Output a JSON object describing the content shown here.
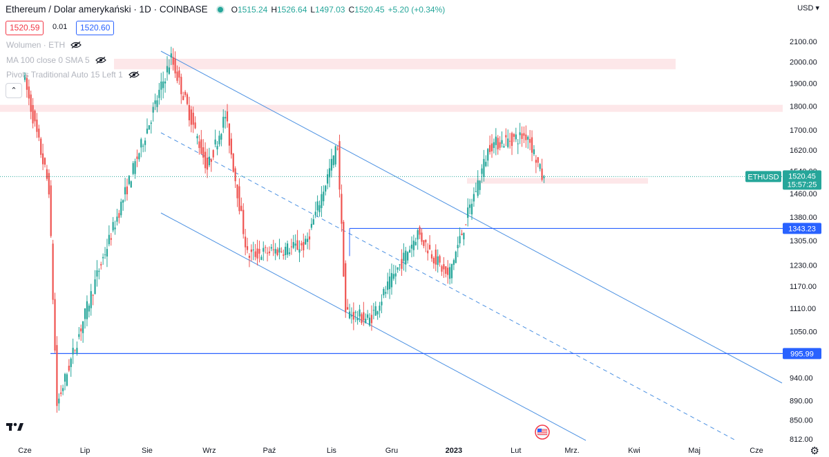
{
  "header": {
    "title": "Ethereum / Dolar amerykański · 1D · COINBASE",
    "open_label": "O",
    "open": "1515.24",
    "high_label": "H",
    "high": "1526.64",
    "low_label": "L",
    "low": "1497.03",
    "close_label": "C",
    "close": "1520.45",
    "change": "+5.20 (+0.34%)"
  },
  "quote": {
    "sell": "1520.59",
    "spread": "0.01",
    "buy": "1520.60"
  },
  "indicators": [
    {
      "label": "Wolumen · ETH"
    },
    {
      "label": "MA 100 close 0 SMA 5"
    },
    {
      "label": "Pivots Traditional Auto 15 Left 1"
    }
  ],
  "currency": "USD",
  "chart_data": {
    "type": "candlestick",
    "symbol": "ETHUSD",
    "ylim": [
      812,
      2120
    ],
    "y_scale": "log",
    "price_ticks": [
      "2100.00",
      "2000.00",
      "1900.00",
      "1800.00",
      "1700.00",
      "1620.00",
      "1540.00",
      "1460.00",
      "1380.00",
      "1305.00",
      "1230.00",
      "1170.00",
      "1110.00",
      "1050.00",
      "995.99",
      "940.00",
      "890.00",
      "850.00",
      "812.00"
    ],
    "time_labels": [
      "Cze",
      "Lip",
      "Sie",
      "Wrz",
      "Paź",
      "Lis",
      "Gru",
      "2023",
      "Lut",
      "Mrz.",
      "Kwi",
      "Maj",
      "Cze"
    ],
    "bold_time_label": "2023",
    "last_price": {
      "symbol": "ETHUSD",
      "price": "1520.45",
      "countdown": "15:57:25"
    },
    "horizontal_levels": [
      {
        "price": 1343.23,
        "label": "1343.23"
      },
      {
        "price": 995.99,
        "label": "995.99"
      }
    ],
    "resistance_zones": [
      {
        "from": 1965,
        "to": 2015
      },
      {
        "from": 1775,
        "to": 1805
      },
      {
        "from": 1495,
        "to": 1515
      }
    ],
    "key_points": [
      {
        "date": "2022-06-01",
        "price": 1950
      },
      {
        "date": "2022-06-14",
        "price": 1480
      },
      {
        "date": "2022-06-18",
        "price": 880
      },
      {
        "date": "2022-07-08",
        "price": 1200
      },
      {
        "date": "2022-08-14",
        "price": 2020
      },
      {
        "date": "2022-09-01",
        "price": 1550
      },
      {
        "date": "2022-09-10",
        "price": 1760
      },
      {
        "date": "2022-09-21",
        "price": 1260
      },
      {
        "date": "2022-10-20",
        "price": 1290
      },
      {
        "date": "2022-11-05",
        "price": 1640
      },
      {
        "date": "2022-11-09",
        "price": 1100
      },
      {
        "date": "2022-11-21",
        "price": 1080
      },
      {
        "date": "2022-12-15",
        "price": 1330
      },
      {
        "date": "2022-12-30",
        "price": 1195
      },
      {
        "date": "2023-01-20",
        "price": 1640
      },
      {
        "date": "2023-02-08",
        "price": 1680
      },
      {
        "date": "2023-02-15",
        "price": 1520.45
      }
    ]
  }
}
